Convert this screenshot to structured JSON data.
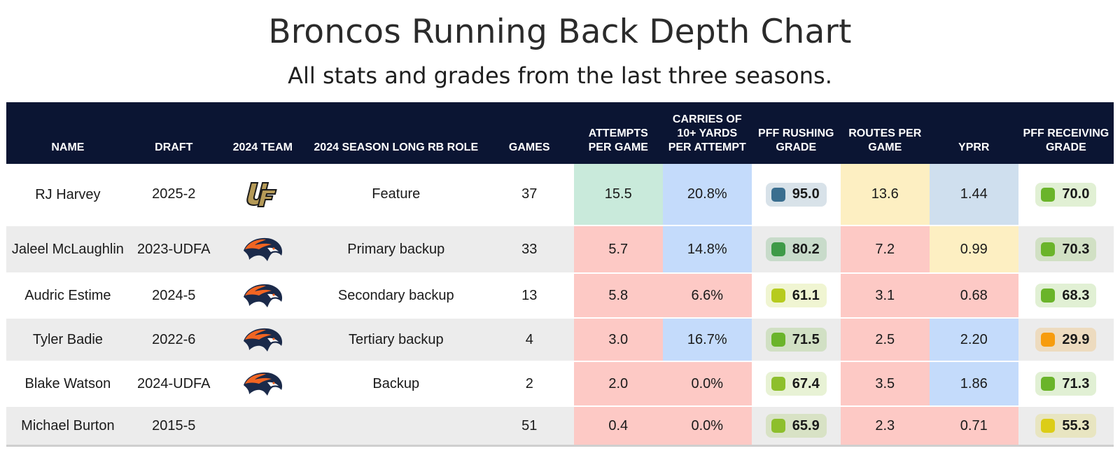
{
  "title": "Broncos Running Back Depth Chart",
  "subtitle": "All stats and grades from the last three seasons.",
  "colors": {
    "header_bg": "#0b1533",
    "heat_red": "#fdc9c5",
    "heat_blue": "#c4dbfb",
    "heat_teal": "#c9eadb",
    "heat_yellow": "#fdefc2",
    "heat_steel": "#cfdfee",
    "grade_elite": "#3a6e8f",
    "grade_high": "#3e9a47",
    "grade_good": "#6ab42a",
    "grade_above": "#8dbf2c",
    "grade_avg": "#b6cb1e",
    "grade_mid": "#dccd17",
    "grade_low": "#f79c0d"
  },
  "columns": [
    "NAME",
    "DRAFT",
    "2024 TEAM",
    "2024 SEASON LONG RB ROLE",
    "GAMES",
    "ATTEMPTS PER GAME",
    "CARRIES OF 10+ YARDS PER ATTEMPT",
    "PFF RUSHING GRADE",
    "ROUTES PER GAME",
    "YPRR",
    "PFF RECEIVING GRADE"
  ],
  "rows": [
    {
      "name": "RJ Harvey",
      "draft": "2025-2",
      "team_logo": "ucf-logo",
      "role": "Feature",
      "games": "37",
      "attempts": "15.5",
      "carries10": "20.8%",
      "rush_grade": "95.0",
      "routes": "13.6",
      "yprr": "1.44",
      "rec_grade": "70.0"
    },
    {
      "name": "Jaleel McLaughlin",
      "draft": "2023-UDFA",
      "team_logo": "broncos-logo",
      "role": "Primary backup",
      "games": "33",
      "attempts": "5.7",
      "carries10": "14.8%",
      "rush_grade": "80.2",
      "routes": "7.2",
      "yprr": "0.99",
      "rec_grade": "70.3"
    },
    {
      "name": "Audric Estime",
      "draft": "2024-5",
      "team_logo": "broncos-logo",
      "role": "Secondary backup",
      "games": "13",
      "attempts": "5.8",
      "carries10": "6.6%",
      "rush_grade": "61.1",
      "routes": "3.1",
      "yprr": "0.68",
      "rec_grade": "68.3"
    },
    {
      "name": "Tyler Badie",
      "draft": "2022-6",
      "team_logo": "broncos-logo",
      "role": "Tertiary backup",
      "games": "4",
      "attempts": "3.0",
      "carries10": "16.7%",
      "rush_grade": "71.5",
      "routes": "2.5",
      "yprr": "2.20",
      "rec_grade": "29.9"
    },
    {
      "name": "Blake Watson",
      "draft": "2024-UDFA",
      "team_logo": "broncos-logo",
      "role": "Backup",
      "games": "2",
      "attempts": "2.0",
      "carries10": "0.0%",
      "rush_grade": "67.4",
      "routes": "3.5",
      "yprr": "1.86",
      "rec_grade": "71.3"
    },
    {
      "name": "Michael Burton",
      "draft": "2015-5",
      "team_logo": "",
      "role": "",
      "games": "51",
      "attempts": "0.4",
      "carries10": "0.0%",
      "rush_grade": "65.9",
      "routes": "2.3",
      "yprr": "0.71",
      "rec_grade": "55.3"
    }
  ]
}
